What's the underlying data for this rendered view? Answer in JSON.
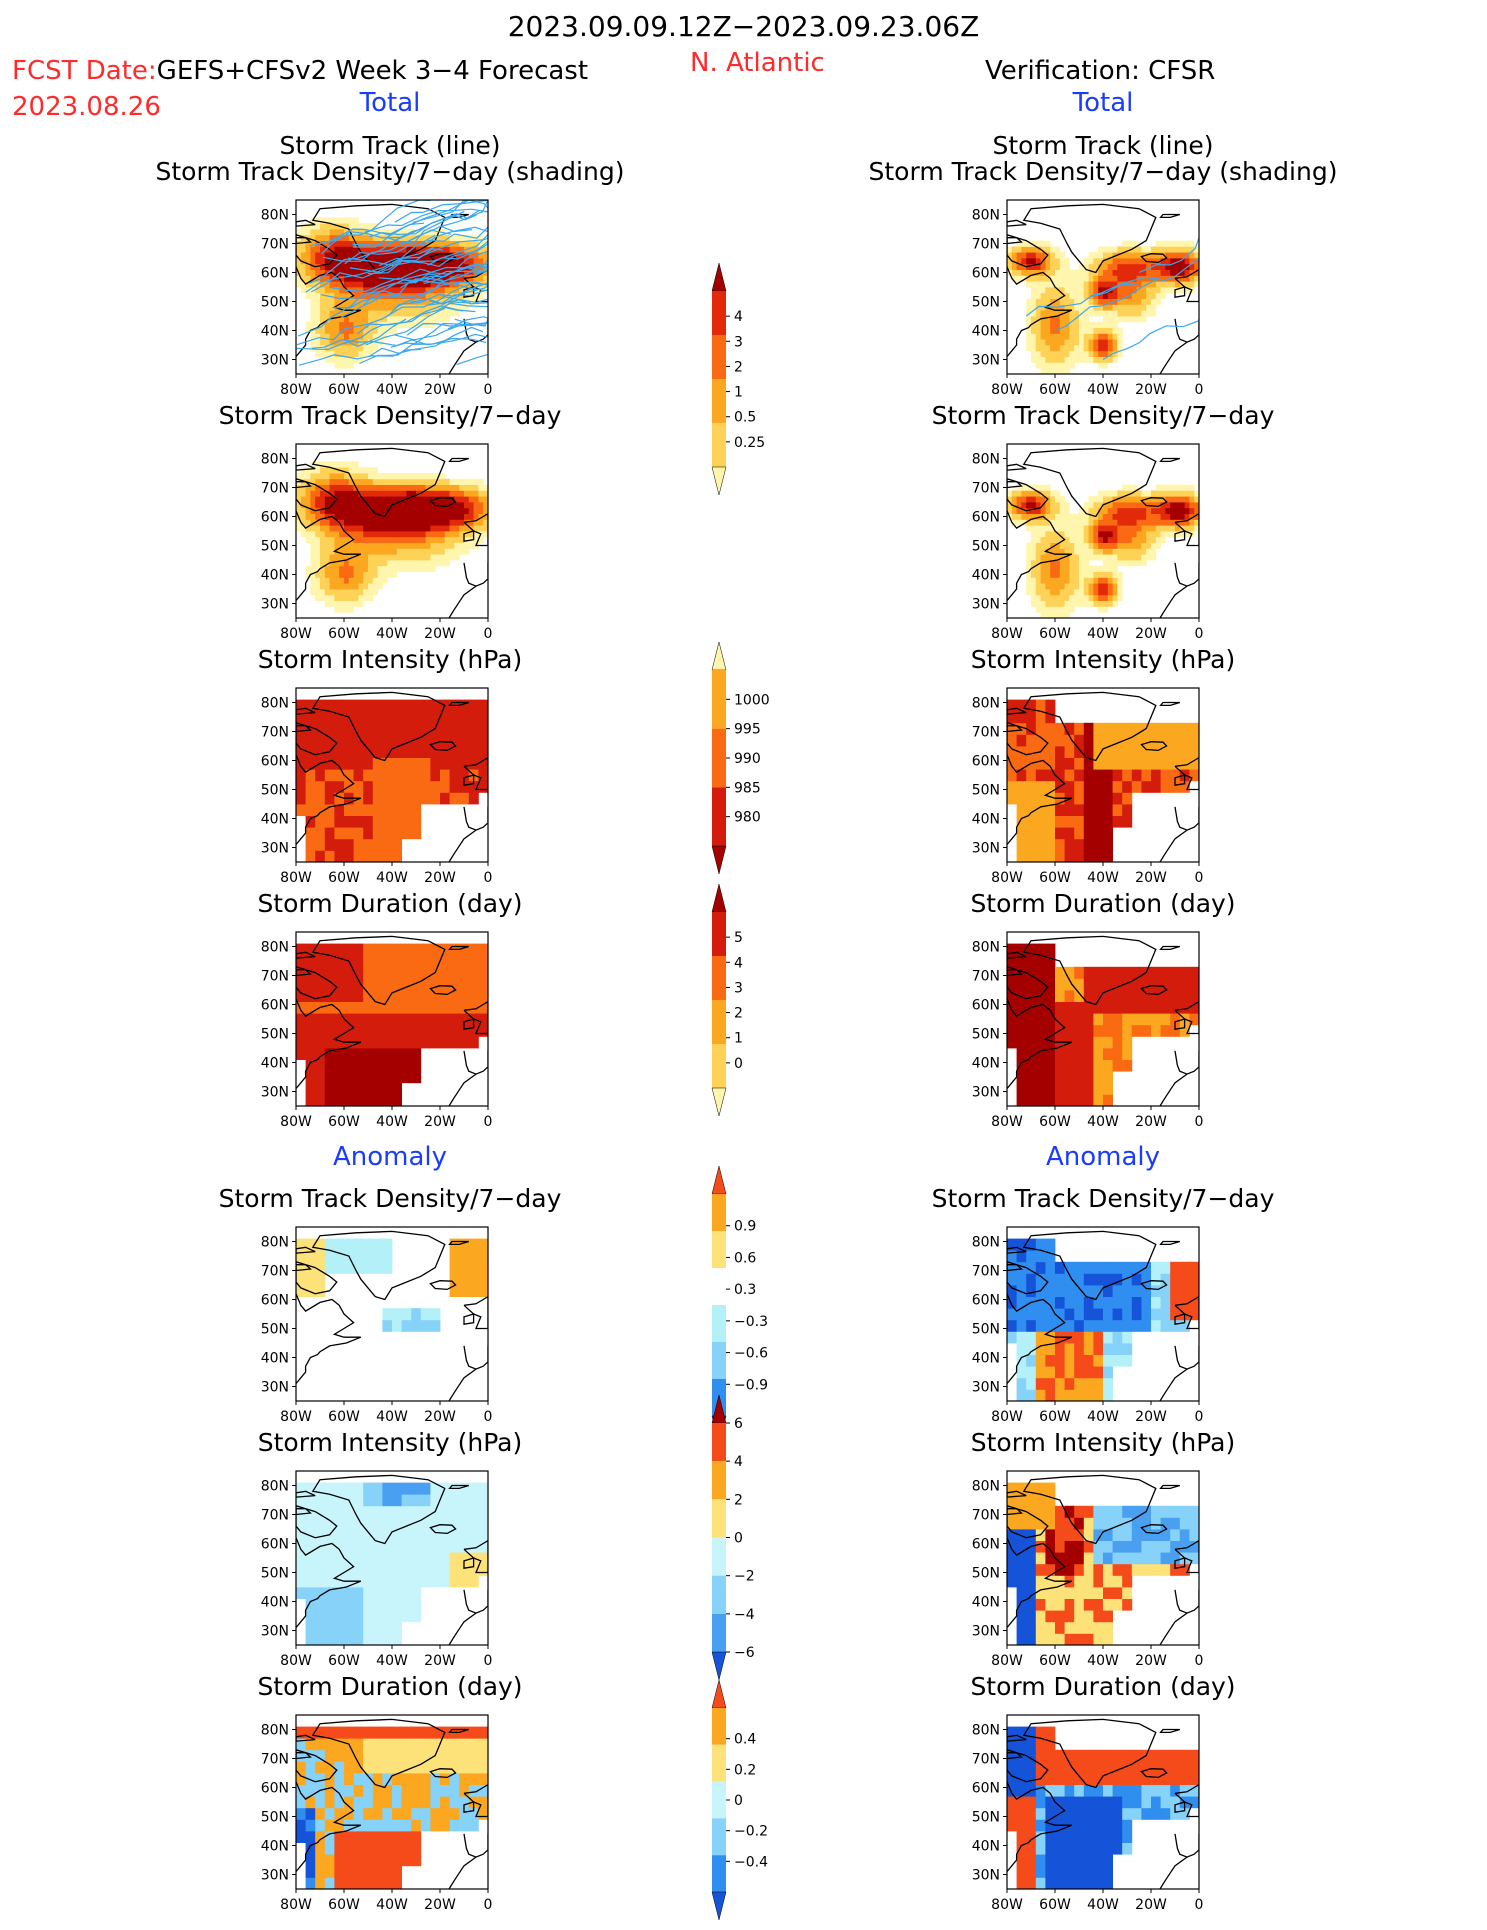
{
  "header": {
    "period": "2023.09.09.12Z−2023.09.23.06Z",
    "fcst_date_label": "FCST Date:",
    "fcst_date_value": "2023.08.26",
    "model": "GEFS+CFSv2 Week 3−4 Forecast",
    "region": "N. Atlantic",
    "verification": "Verification: CFSR",
    "colors": {
      "red": "#ff2a2a",
      "blue": "#1a3cff",
      "black": "#000000"
    }
  },
  "sections": {
    "total": "Total",
    "anomaly": "Anomaly"
  },
  "panel_titles": {
    "track_line": "Storm Track (line)",
    "track_shading": "Storm Track Density/7−day (shading)",
    "track_density": "Storm Track Density/7−day",
    "intensity": "Storm Intensity (hPa)",
    "duration": "Storm Duration (day)"
  },
  "map_axes": {
    "lon_labels": [
      "80W",
      "60W",
      "40W",
      "20W",
      "0"
    ],
    "lat_labels": [
      "80N",
      "70N",
      "60N",
      "50N",
      "40N",
      "30N"
    ],
    "lon_range": [
      -80,
      0
    ],
    "lat_range": [
      25,
      85
    ]
  },
  "colorbars": {
    "density_total": {
      "labels": [
        "4",
        "3",
        "2",
        "1",
        "0.5",
        "0.25"
      ],
      "colors": [
        "#a50000",
        "#e22a0a",
        "#f96a12",
        "#fba720",
        "#fdd257",
        "#fff5ac"
      ]
    },
    "intensity_total": {
      "labels": [
        "1000",
        "995",
        "990",
        "985",
        "980"
      ],
      "colors": [
        "#fff5ac",
        "#fba720",
        "#f96a12",
        "#d31c0c",
        "#a50000"
      ]
    },
    "duration_total": {
      "labels": [
        "5",
        "4",
        "3",
        "2",
        "1",
        "0"
      ],
      "colors": [
        "#a50000",
        "#d31c0c",
        "#f96a12",
        "#fba720",
        "#fdd257",
        "#fff5ac"
      ]
    },
    "density_anom": {
      "labels": [
        "0.9",
        "0.6",
        "0.3",
        "−0.3",
        "−0.6",
        "−0.9"
      ],
      "colors": [
        "#f54a1a",
        "#fba720",
        "#fde27a",
        "#ffffff",
        "#b4f0f8",
        "#86d2f8",
        "#2f8ef0",
        "#1553d8"
      ]
    },
    "intensity_anom": {
      "labels": [
        "6",
        "4",
        "2",
        "0",
        "−2",
        "−4",
        "−6"
      ],
      "colors": [
        "#a50000",
        "#f54a1a",
        "#fba720",
        "#fde27a",
        "#c8f5fb",
        "#86d2f8",
        "#4aa0f0",
        "#1553d8"
      ]
    },
    "duration_anom": {
      "labels": [
        "0.4",
        "0.2",
        "0",
        "−0.2",
        "−0.4"
      ],
      "colors": [
        "#f54a1a",
        "#fba720",
        "#fde27a",
        "#c8f5fb",
        "#86d2f8",
        "#2f8ef0",
        "#1553d8"
      ]
    }
  },
  "panels": {
    "fcst_track": {
      "column": "forecast",
      "field": "track_density_total",
      "overlay": "tracks",
      "level": "high"
    },
    "obs_track": {
      "column": "verification",
      "field": "track_density_total",
      "overlay": "tracks",
      "level": "sparse"
    },
    "fcst_density": {
      "column": "forecast",
      "field": "track_density_total"
    },
    "obs_density": {
      "column": "verification",
      "field": "track_density_total"
    },
    "fcst_intensity": {
      "column": "forecast",
      "field": "intensity_total"
    },
    "obs_intensity": {
      "column": "verification",
      "field": "intensity_total"
    },
    "fcst_duration": {
      "column": "forecast",
      "field": "duration_total"
    },
    "obs_duration": {
      "column": "verification",
      "field": "duration_total"
    },
    "fcst_density_anom": {
      "column": "forecast",
      "field": "track_density_anomaly"
    },
    "obs_density_anom": {
      "column": "verification",
      "field": "track_density_anomaly"
    },
    "fcst_intensity_anom": {
      "column": "forecast",
      "field": "intensity_anomaly"
    },
    "obs_intensity_anom": {
      "column": "verification",
      "field": "intensity_anomaly"
    },
    "fcst_duration_anom": {
      "column": "forecast",
      "field": "duration_anomaly"
    },
    "obs_duration_anom": {
      "column": "verification",
      "field": "duration_anomaly"
    }
  }
}
